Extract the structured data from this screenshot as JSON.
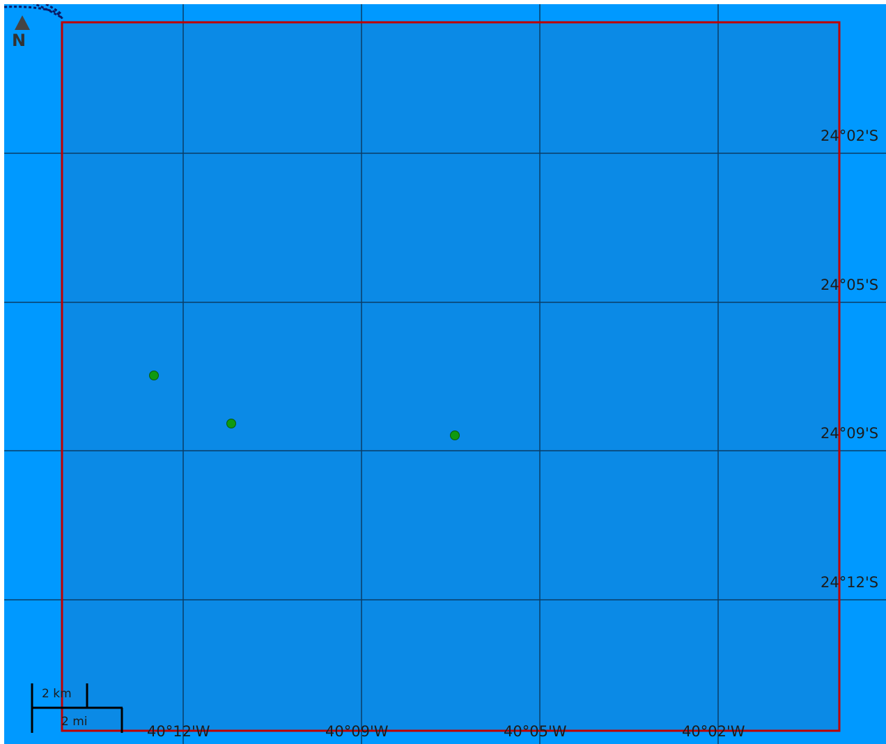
{
  "map": {
    "background_color": "#0099ff",
    "study_area_fill": "#0b8ae6",
    "study_area_border_color": "#c00000",
    "grid_color": "#0a3d66",
    "point_color": "#109a10",
    "latitude_labels": [
      "24°02'S",
      "24°05'S",
      "24°09'S",
      "24°12'S"
    ],
    "longitude_labels": [
      "40°12'W",
      "40°09'W",
      "40°05'W",
      "40°02'W"
    ],
    "points_count": 3,
    "north_arrow": {
      "icon": "north-arrow-icon",
      "label": "N"
    },
    "scale_bar": {
      "km_label": "2 km",
      "mi_label": "2 mi"
    }
  }
}
